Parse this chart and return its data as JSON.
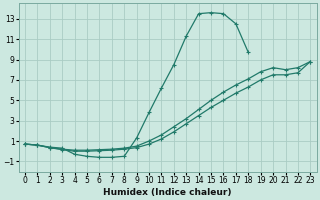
{
  "xlabel": "Humidex (Indice chaleur)",
  "ylabel": "",
  "bg_color": "#cce8e0",
  "grid_color": "#aaccc4",
  "line_color": "#217a6a",
  "xlim": [
    -0.5,
    23.5
  ],
  "ylim": [
    -2.0,
    14.5
  ],
  "xticks": [
    0,
    1,
    2,
    3,
    4,
    5,
    6,
    7,
    8,
    9,
    10,
    11,
    12,
    13,
    14,
    15,
    16,
    17,
    18,
    19,
    20,
    21,
    22,
    23
  ],
  "yticks": [
    -1,
    1,
    3,
    5,
    7,
    9,
    11,
    13
  ],
  "line1_x": [
    0,
    1,
    2,
    3,
    4,
    5,
    6,
    7,
    8,
    9,
    10,
    11,
    12,
    13,
    14,
    15,
    16,
    17,
    18
  ],
  "line1_y": [
    0.7,
    0.6,
    0.4,
    0.3,
    -0.3,
    -0.5,
    -0.6,
    -0.6,
    -0.5,
    1.3,
    3.8,
    6.2,
    8.5,
    11.3,
    13.5,
    13.6,
    13.5,
    12.5,
    9.7
  ],
  "line2_x": [
    0,
    1,
    2,
    3,
    4,
    5,
    6,
    7,
    8,
    9,
    10,
    11,
    12,
    13,
    14,
    15,
    16,
    17,
    18,
    19,
    20,
    21,
    22,
    23
  ],
  "line2_y": [
    0.7,
    0.6,
    0.35,
    0.2,
    0.1,
    0.1,
    0.15,
    0.2,
    0.3,
    0.5,
    1.0,
    1.6,
    2.4,
    3.2,
    4.1,
    5.0,
    5.8,
    6.5,
    7.1,
    7.8,
    8.2,
    8.0,
    8.2,
    8.8
  ],
  "line3_x": [
    0,
    1,
    2,
    3,
    4,
    5,
    6,
    7,
    8,
    9,
    10,
    11,
    12,
    13,
    14,
    15,
    16,
    17,
    18,
    19,
    20,
    21,
    22,
    23
  ],
  "line3_y": [
    0.7,
    0.6,
    0.35,
    0.15,
    0.0,
    0.0,
    0.05,
    0.1,
    0.2,
    0.35,
    0.7,
    1.2,
    1.9,
    2.7,
    3.5,
    4.3,
    5.0,
    5.7,
    6.3,
    7.0,
    7.5,
    7.5,
    7.7,
    8.8
  ]
}
